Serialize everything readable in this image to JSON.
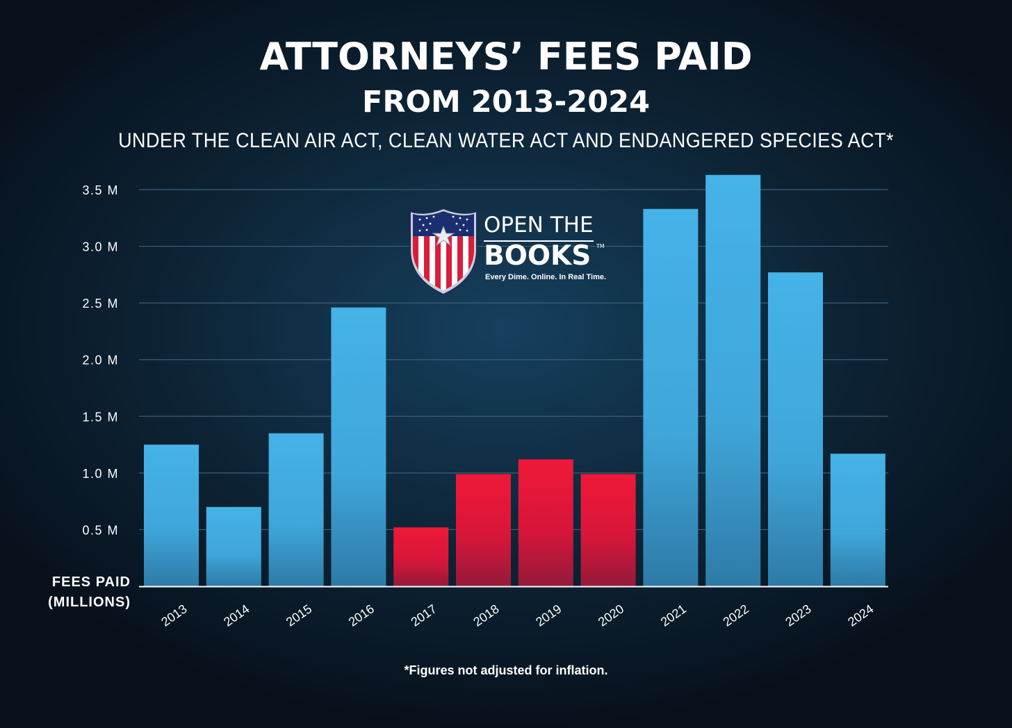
{
  "title": "ATTORNEYS’ FEES PAID",
  "title_line2": "FROM 2013-2024",
  "subtitle": "UNDER THE CLEAN AIR ACT, CLEAN WATER ACT AND ENDANGERED SPECIES ACT*",
  "footnote": "*Figures not adjusted for inflation.",
  "logo": {
    "line1": "OPEN THE",
    "line2": "BOOKS",
    "tm": "TM",
    "tagline": "Every Dime. Online. In Real Time."
  },
  "colors": {
    "blue_bar": "#41ade3",
    "red_bar": "#e8173a",
    "gridline": "#3c5f78",
    "axis": "#ffffff"
  },
  "chart_data": {
    "type": "bar",
    "ylabel": "FEES PAID (MILLIONS)",
    "ylabel_lines": [
      "FEES PAID",
      "(MILLIONS)"
    ],
    "categories": [
      "2013",
      "2014",
      "2015",
      "2016",
      "2017",
      "2018",
      "2019",
      "2020",
      "2021",
      "2022",
      "2023",
      "2024"
    ],
    "values": [
      1.25,
      0.7,
      1.35,
      2.46,
      0.52,
      0.99,
      1.12,
      0.99,
      3.33,
      3.63,
      2.77,
      1.17
    ],
    "bar_colors": [
      "blue",
      "blue",
      "blue",
      "blue",
      "red",
      "red",
      "red",
      "red",
      "blue",
      "blue",
      "blue",
      "blue"
    ],
    "ylim": [
      0,
      3.5
    ],
    "yticks": [
      0.5,
      1.0,
      1.5,
      2.0,
      2.5,
      3.0,
      3.5
    ],
    "ytick_labels": [
      "0.5 M",
      "1.0 M",
      "1.5 M",
      "2.0 M",
      "2.5 M",
      "3.0 M",
      "3.5 M"
    ],
    "grid": true,
    "legend": "none"
  }
}
